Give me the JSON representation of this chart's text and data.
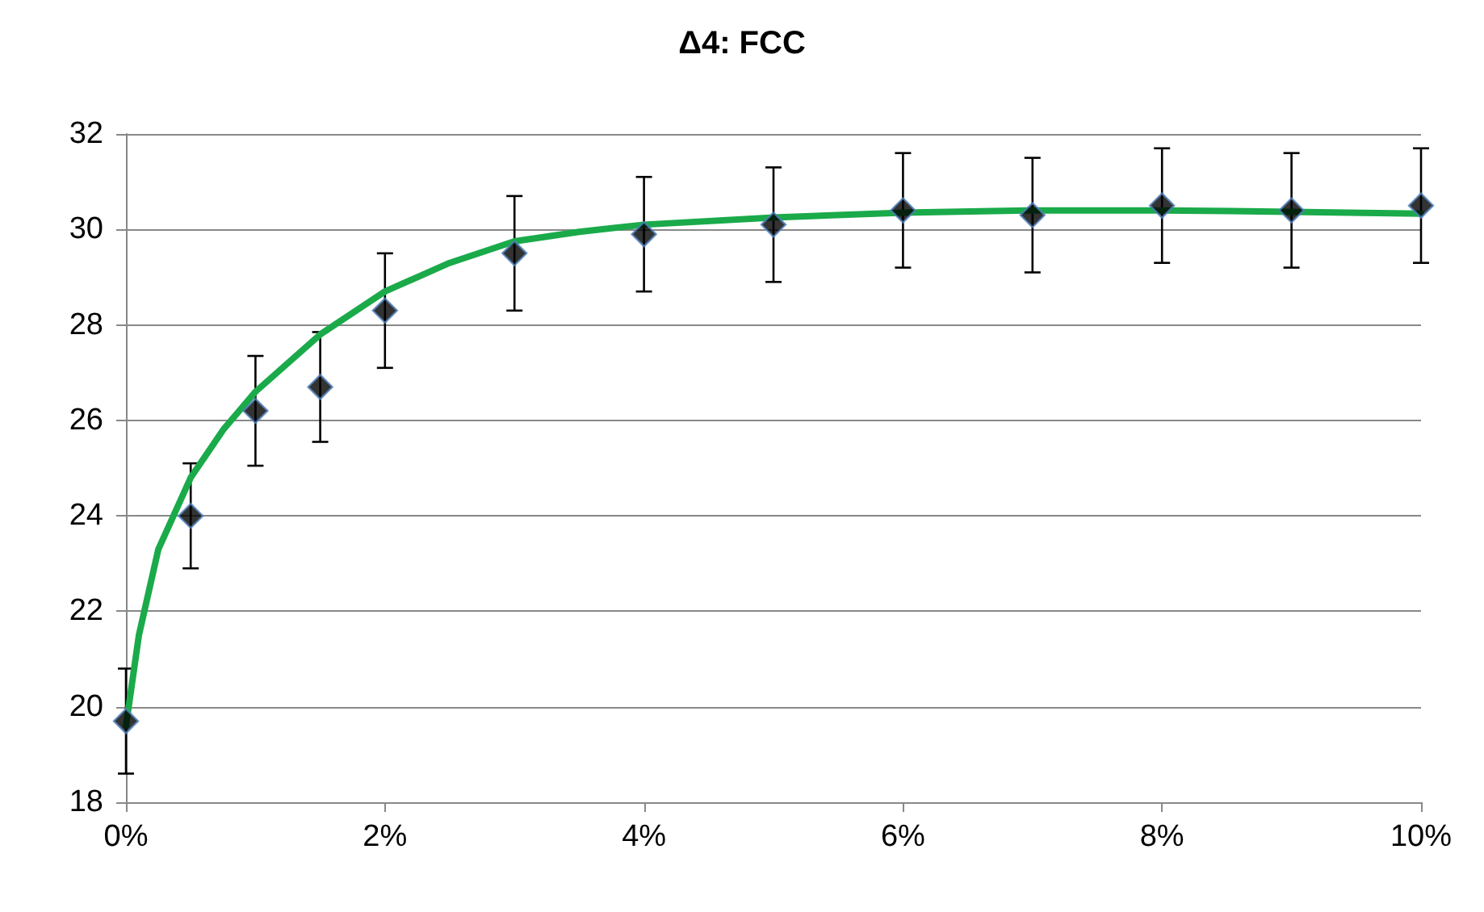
{
  "chart_data": {
    "type": "scatter",
    "title": "Δ4: FCC",
    "series": [
      {
        "color": "#000000",
        "marker": "diamond",
        "x": [
          0,
          0.5,
          1,
          1.5,
          2,
          3,
          4,
          5,
          6,
          7,
          8,
          9,
          10
        ],
        "values": [
          19.7,
          24.0,
          26.2,
          26.7,
          28.3,
          29.5,
          29.9,
          30.1,
          30.4,
          30.3,
          30.5,
          30.4,
          30.5
        ],
        "errors": [
          1.1,
          1.1,
          1.15,
          1.15,
          1.2,
          1.2,
          1.2,
          1.2,
          1.2,
          1.2,
          1.2,
          1.2,
          1.2
        ]
      },
      {
        "type": "line",
        "color": "#1aaa4a",
        "marker": "none",
        "x": [
          0,
          0.1,
          0.25,
          0.5,
          0.75,
          1,
          1.5,
          2,
          2.5,
          3,
          3.5,
          4,
          5,
          6,
          7,
          8,
          9,
          10
        ],
        "values": [
          19.6,
          21.5,
          23.3,
          24.8,
          25.8,
          26.6,
          27.8,
          28.7,
          29.3,
          29.75,
          29.95,
          30.1,
          30.25,
          30.35,
          30.4,
          30.4,
          30.37,
          30.33
        ]
      }
    ],
    "xlim": [
      0,
      10
    ],
    "xticks": [
      {
        "value": 0,
        "label": "0%"
      },
      {
        "value": 2,
        "label": "2%"
      },
      {
        "value": 4,
        "label": "4%"
      },
      {
        "value": 6,
        "label": "6%"
      },
      {
        "value": 8,
        "label": "8%"
      },
      {
        "value": 10,
        "label": "10%"
      }
    ],
    "ylim": [
      18,
      32
    ],
    "yticks": [
      18,
      20,
      22,
      24,
      26,
      28,
      30,
      32
    ],
    "grid": "y"
  }
}
